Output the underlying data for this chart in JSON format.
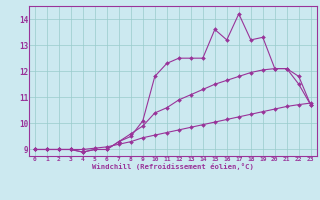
{
  "xlabel": "Windchill (Refroidissement éolien,°C)",
  "bg_color": "#cce9f0",
  "line_color": "#993399",
  "grid_color": "#99cccc",
  "xlim": [
    -0.5,
    23.5
  ],
  "ylim": [
    8.75,
    14.5
  ],
  "xticks": [
    0,
    1,
    2,
    3,
    4,
    5,
    6,
    7,
    8,
    9,
    10,
    11,
    12,
    13,
    14,
    15,
    16,
    17,
    18,
    19,
    20,
    21,
    22,
    23
  ],
  "yticks": [
    9,
    10,
    11,
    12,
    13,
    14
  ],
  "line1_x": [
    0,
    1,
    2,
    3,
    4,
    5,
    6,
    7,
    8,
    9,
    10,
    11,
    12,
    13,
    14,
    15,
    16,
    17,
    18,
    19,
    20,
    21,
    22,
    23
  ],
  "line1_y": [
    9.0,
    9.0,
    9.0,
    9.0,
    8.9,
    9.0,
    9.0,
    9.3,
    9.5,
    10.1,
    11.8,
    12.3,
    12.5,
    12.5,
    12.5,
    13.6,
    13.2,
    14.2,
    13.2,
    13.3,
    12.1,
    12.1,
    11.5,
    10.7
  ],
  "line2_x": [
    0,
    1,
    2,
    3,
    4,
    5,
    6,
    7,
    8,
    9,
    10,
    11,
    12,
    13,
    14,
    15,
    16,
    17,
    18,
    19,
    20,
    21,
    22,
    23
  ],
  "line2_y": [
    9.0,
    9.0,
    9.0,
    9.0,
    8.9,
    9.0,
    9.0,
    9.3,
    9.6,
    9.9,
    10.4,
    10.6,
    10.9,
    11.1,
    11.3,
    11.5,
    11.65,
    11.8,
    11.95,
    12.05,
    12.1,
    12.1,
    11.8,
    10.7
  ],
  "line3_x": [
    0,
    1,
    2,
    3,
    4,
    5,
    6,
    7,
    8,
    9,
    10,
    11,
    12,
    13,
    14,
    15,
    16,
    17,
    18,
    19,
    20,
    21,
    22,
    23
  ],
  "line3_y": [
    9.0,
    9.0,
    9.0,
    9.0,
    9.0,
    9.05,
    9.1,
    9.2,
    9.3,
    9.45,
    9.55,
    9.65,
    9.75,
    9.85,
    9.95,
    10.05,
    10.15,
    10.25,
    10.35,
    10.45,
    10.55,
    10.65,
    10.72,
    10.78
  ]
}
